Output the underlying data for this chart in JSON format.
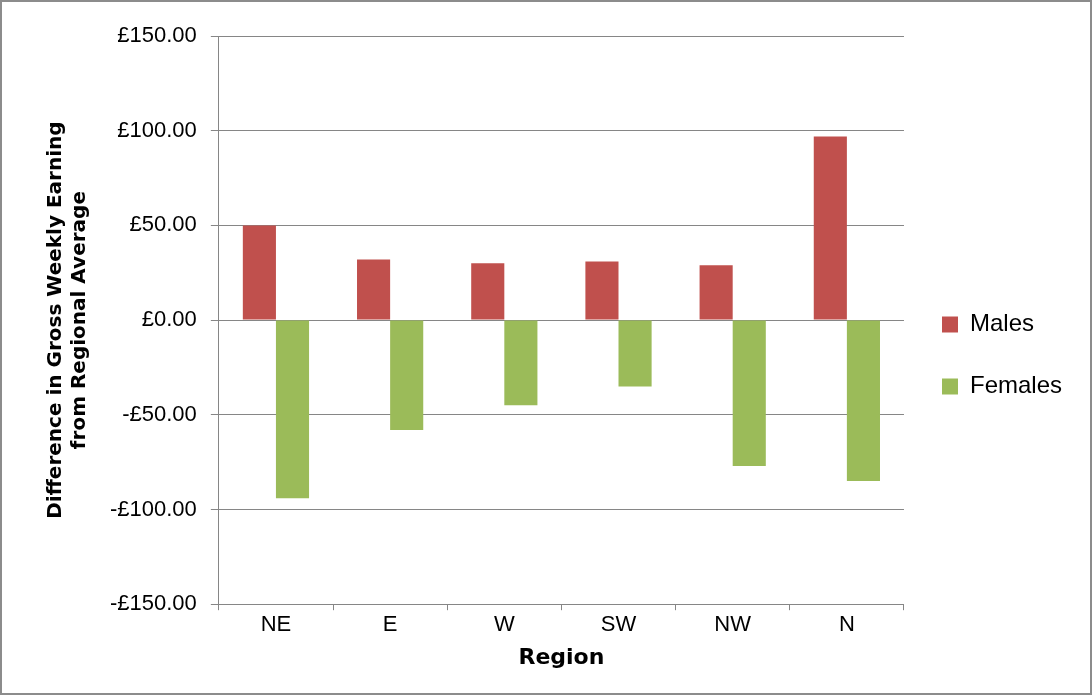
{
  "chart_data": {
    "type": "bar",
    "xlabel": "Region",
    "ylabel": "Difference in Gross Weekly Earning from Regional Average",
    "categories": [
      "NE",
      "E",
      "W",
      "SW",
      "NW",
      "N"
    ],
    "series": [
      {
        "name": "Males",
        "color": "#c0504d",
        "values": [
          50,
          32,
          30,
          31,
          29,
          97
        ]
      },
      {
        "name": "Females",
        "color": "#9bbb59",
        "values": [
          -94,
          -58,
          -45,
          -35,
          -77,
          -85
        ]
      }
    ],
    "ylim": [
      -150,
      150
    ],
    "yticks": [
      {
        "value": -150,
        "label": "-£150.00"
      },
      {
        "value": -100,
        "label": "-£100.00"
      },
      {
        "value": -50,
        "label": "-£50.00"
      },
      {
        "value": 0,
        "label": "£0.00"
      },
      {
        "value": 50,
        "label": "£50.00"
      },
      {
        "value": 100,
        "label": "£100.00"
      },
      {
        "value": 150,
        "label": "£150.00"
      }
    ],
    "grid": "y",
    "legend": "right"
  }
}
